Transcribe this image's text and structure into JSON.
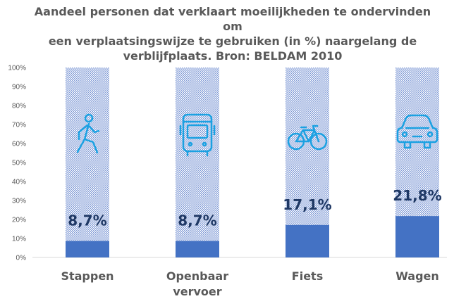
{
  "chart_data": {
    "type": "bar",
    "title": "Aandeel personen dat verklaart moeilijkheden te ondervinden om\neen verplaatsingswijze te gebruiken (in %) naargelang de\nverblijfplaats. Bron: BELDAM 2010",
    "categories": [
      "Stappen",
      "Openbaar\nvervoer",
      "Fiets",
      "Wagen"
    ],
    "values": [
      8.7,
      8.7,
      17.1,
      21.8
    ],
    "data_labels": [
      "8,7%",
      "8,7%",
      "17,1%",
      "21,8%"
    ],
    "background_value": 100,
    "y_ticks": [
      "0%",
      "10%",
      "20%",
      "30%",
      "40%",
      "50%",
      "60%",
      "70%",
      "80%",
      "90%",
      "100%"
    ],
    "ylim": [
      0,
      100
    ],
    "grid": false,
    "icons": [
      "walking-person-icon",
      "bus-icon",
      "bicycle-icon",
      "car-icon"
    ],
    "colors": {
      "bar": "#4472c4",
      "pattern": "#7f9ad6",
      "label": "#1f3864",
      "icon": "#1ba1e2",
      "text": "#595959"
    }
  }
}
